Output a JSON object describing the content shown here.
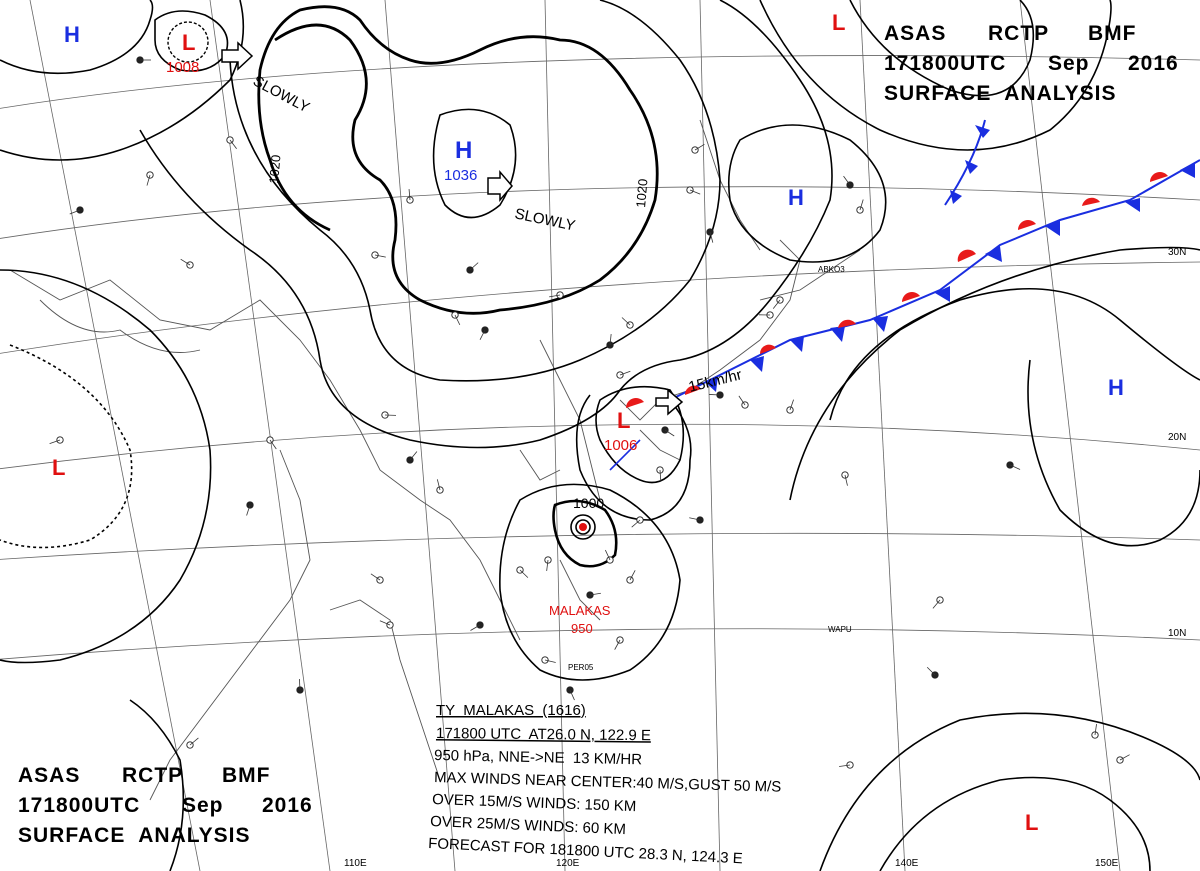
{
  "header_top": {
    "line1": [
      "ASAS",
      "RCTP",
      "BMF"
    ],
    "line2": [
      "171800UTC",
      "Sep",
      "2016"
    ],
    "line3": "SURFACE  ANALYSIS"
  },
  "header_bottom": {
    "line1": [
      "ASAS",
      "RCTP",
      "BMF"
    ],
    "line2": [
      "171800UTC",
      "Sep",
      "2016"
    ],
    "line3": "SURFACE  ANALYSIS"
  },
  "pressure_centers": {
    "high_main": {
      "letter": "H",
      "value": "1036"
    },
    "low_north": {
      "letter": "L",
      "value": "1008"
    },
    "low_taiwan": {
      "letter": "L",
      "value": "1006"
    },
    "typhoon": {
      "value": "1000",
      "name": "MALAKAS",
      "pressure": "950"
    },
    "high_nw": "H",
    "high_japan": "H",
    "high_pacific": "H",
    "low_ne": "L",
    "low_west": "L",
    "low_se": "L"
  },
  "isobar_labels": {
    "i1020_left": "1020",
    "i1020_right": "1020"
  },
  "motion": {
    "slowly_1": "SLOWLY",
    "slowly_2": "SLOWLY",
    "speed": "15km/hr"
  },
  "lat_labels": [
    "30N",
    "20N",
    "10N"
  ],
  "lon_labels": [
    "110E",
    "120E",
    "140E",
    "150E"
  ],
  "station_codes": {
    "abk": "ABKO3",
    "wapu": "WAPU",
    "per": "PER05"
  },
  "typhoon_box": {
    "line1": "TY  MALAKAS  (1616)",
    "line2": "171800 UTC  AT26.0 N, 122.9 E",
    "line3": "950 hPa, NNE->NE  13 KM/HR",
    "line4": "MAX WINDS NEAR CENTER:40 M/S,GUST 50 M/S",
    "line5": "OVER 15M/S WINDS: 150 KM",
    "line6": "OVER 25M/S WINDS: 60 KM",
    "line7": "FORECAST FOR 181800 UTC 28.3 N, 124.3 E"
  },
  "colors": {
    "high": "#1a2ee0",
    "low": "#e01010",
    "front_cold": "#1a2ee0",
    "front_warm": "#e81a1a",
    "isobar": "#000000"
  }
}
